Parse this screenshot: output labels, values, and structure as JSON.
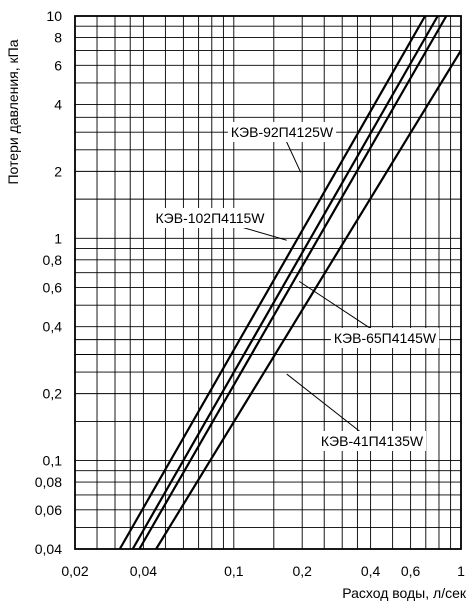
{
  "chart_data": {
    "type": "line",
    "xscale": "log",
    "yscale": "log",
    "xlim": [
      0.02,
      1
    ],
    "ylim": [
      0.04,
      10
    ],
    "grid": true,
    "xlabel": "Расход воды, л/сек",
    "ylabel": "Потери давления, кПа",
    "x_ticks": [
      {
        "value": 0.02,
        "label": "0,02"
      },
      {
        "value": 0.04,
        "label": "0,04"
      },
      {
        "value": 0.1,
        "label": "0,1"
      },
      {
        "value": 0.2,
        "label": "0,2"
      },
      {
        "value": 0.4,
        "label": "0,4"
      },
      {
        "value": 0.6,
        "label": "0,6"
      },
      {
        "value": 1,
        "label": "1"
      }
    ],
    "y_ticks": [
      {
        "value": 0.04,
        "label": "0,04"
      },
      {
        "value": 0.06,
        "label": "0,06"
      },
      {
        "value": 0.08,
        "label": "0,08"
      },
      {
        "value": 0.1,
        "label": "0,1"
      },
      {
        "value": 0.2,
        "label": "0,2"
      },
      {
        "value": 0.4,
        "label": "0,4"
      },
      {
        "value": 0.6,
        "label": "0,6"
      },
      {
        "value": 0.8,
        "label": "0,8"
      },
      {
        "value": 1,
        "label": "1"
      },
      {
        "value": 2,
        "label": "2"
      },
      {
        "value": 4,
        "label": "4"
      },
      {
        "value": 6,
        "label": "6"
      },
      {
        "value": 8,
        "label": "8"
      },
      {
        "value": 10,
        "label": "10"
      }
    ],
    "x_grid": [
      0.02,
      0.025,
      0.03,
      0.035,
      0.04,
      0.05,
      0.06,
      0.07,
      0.08,
      0.09,
      0.1,
      0.15,
      0.2,
      0.25,
      0.3,
      0.35,
      0.4,
      0.5,
      0.6,
      0.7,
      0.8,
      0.9,
      1
    ],
    "y_grid": [
      0.04,
      0.05,
      0.06,
      0.07,
      0.08,
      0.09,
      0.1,
      0.15,
      0.2,
      0.25,
      0.3,
      0.35,
      0.4,
      0.5,
      0.6,
      0.7,
      0.8,
      0.9,
      1,
      1.5,
      2,
      2.5,
      3,
      3.5,
      4,
      5,
      6,
      7,
      8,
      9,
      10
    ],
    "series": [
      {
        "name": "КЭВ-92П4125W",
        "points": [
          [
            0.0315,
            0.04
          ],
          [
            0.695,
            10
          ]
        ]
      },
      {
        "name": "КЭВ-102П4115W",
        "points": [
          [
            0.0359,
            0.04
          ],
          [
            0.79,
            10
          ]
        ]
      },
      {
        "name": "КЭВ-65П4145W",
        "points": [
          [
            0.0384,
            0.04
          ],
          [
            0.862,
            10
          ]
        ]
      },
      {
        "name": "КЭВ-41П4135W",
        "points": [
          [
            0.0455,
            0.04
          ],
          [
            1.0,
            7.0
          ]
        ]
      }
    ],
    "annotations": [
      {
        "series": 0,
        "text": "КЭВ-92П4125W",
        "at": [
          0.197,
          1.98
        ]
      },
      {
        "series": 1,
        "text": "КЭВ-102П4115W",
        "at": [
          0.171,
          0.98
        ]
      },
      {
        "series": 2,
        "text": "КЭВ-65П4145W",
        "at": [
          0.194,
          0.64
        ]
      },
      {
        "series": 3,
        "text": "КЭВ-41П4135W",
        "at": [
          0.171,
          0.245
        ]
      }
    ]
  }
}
